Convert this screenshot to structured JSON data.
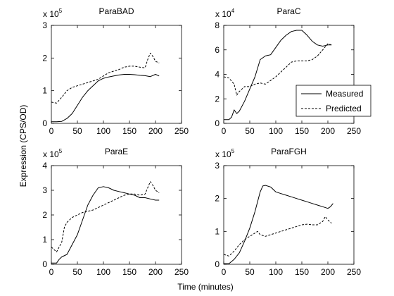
{
  "figure": {
    "ylabel": "Expression (CPS/OD)",
    "xlabel": "Time (minutes)"
  },
  "legend": {
    "placement": "right side of ParaC panel",
    "entries": [
      {
        "label": "Measured",
        "style": "solid"
      },
      {
        "label": "Predicted",
        "style": "dashed"
      }
    ]
  },
  "chart_data": [
    {
      "type": "line",
      "title": "ParaBAD",
      "xlim": [
        0,
        250
      ],
      "ylim": [
        0,
        3
      ],
      "xticks": [
        "0",
        "50",
        "100",
        "150",
        "200",
        "250"
      ],
      "yticks": [
        "0",
        "1",
        "2",
        "3"
      ],
      "multiplier": {
        "base": "x 10",
        "exp": "5"
      },
      "series": [
        {
          "name": "Measured",
          "x": [
            0,
            10,
            20,
            30,
            40,
            50,
            60,
            70,
            80,
            90,
            100,
            110,
            120,
            130,
            140,
            150,
            160,
            170,
            180,
            190,
            200,
            207
          ],
          "y": [
            0.05,
            0.05,
            0.06,
            0.15,
            0.3,
            0.55,
            0.8,
            1.0,
            1.15,
            1.3,
            1.38,
            1.42,
            1.45,
            1.48,
            1.5,
            1.5,
            1.49,
            1.47,
            1.46,
            1.43,
            1.5,
            1.45
          ]
        },
        {
          "name": "Predicted",
          "x": [
            0,
            10,
            20,
            25,
            30,
            40,
            50,
            60,
            70,
            80,
            90,
            100,
            110,
            120,
            130,
            140,
            150,
            160,
            170,
            180,
            185,
            190,
            195,
            200,
            207
          ],
          "y": [
            0.65,
            0.62,
            0.8,
            0.9,
            1.0,
            1.1,
            1.15,
            1.2,
            1.25,
            1.3,
            1.35,
            1.45,
            1.55,
            1.6,
            1.65,
            1.72,
            1.75,
            1.75,
            1.72,
            1.7,
            1.95,
            2.15,
            2.05,
            1.9,
            1.85
          ]
        }
      ]
    },
    {
      "type": "line",
      "title": "ParaC",
      "xlim": [
        0,
        250
      ],
      "ylim": [
        0,
        8
      ],
      "xticks": [
        "0",
        "50",
        "100",
        "150",
        "200",
        "250"
      ],
      "yticks": [
        "0",
        "2",
        "4",
        "6",
        "8"
      ],
      "multiplier": {
        "base": "x 10",
        "exp": "4"
      },
      "series": [
        {
          "name": "Measured",
          "x": [
            0,
            10,
            15,
            20,
            25,
            30,
            40,
            50,
            60,
            70,
            80,
            90,
            100,
            110,
            120,
            130,
            140,
            150,
            160,
            170,
            180,
            190,
            200,
            207
          ],
          "y": [
            0.3,
            0.3,
            0.5,
            1.1,
            0.8,
            1.0,
            1.8,
            2.8,
            3.8,
            5.2,
            5.5,
            5.6,
            6.2,
            6.8,
            7.2,
            7.5,
            7.6,
            7.6,
            7.2,
            6.7,
            6.4,
            6.3,
            6.4,
            6.4
          ]
        },
        {
          "name": "Predicted",
          "x": [
            0,
            10,
            20,
            25,
            30,
            40,
            50,
            60,
            70,
            80,
            90,
            100,
            110,
            120,
            130,
            140,
            150,
            160,
            170,
            180,
            190,
            200,
            207
          ],
          "y": [
            3.8,
            3.7,
            3.2,
            2.3,
            2.6,
            3.0,
            3.0,
            3.2,
            3.3,
            3.2,
            3.5,
            3.8,
            4.2,
            4.6,
            5.0,
            5.1,
            5.1,
            5.1,
            5.2,
            5.5,
            6.0,
            6.5,
            6.4
          ]
        }
      ]
    },
    {
      "type": "line",
      "title": "ParaE",
      "xlim": [
        0,
        250
      ],
      "ylim": [
        0,
        4
      ],
      "xticks": [
        "0",
        "50",
        "100",
        "150",
        "200",
        "250"
      ],
      "yticks": [
        "0",
        "1",
        "2",
        "3",
        "4"
      ],
      "multiplier": {
        "base": "x 10",
        "exp": "5"
      },
      "series": [
        {
          "name": "Measured",
          "x": [
            0,
            10,
            15,
            20,
            30,
            40,
            50,
            60,
            70,
            80,
            90,
            100,
            110,
            120,
            130,
            140,
            150,
            160,
            170,
            180,
            190,
            200,
            207
          ],
          "y": [
            0.05,
            0.05,
            0.2,
            0.3,
            0.4,
            0.8,
            1.2,
            1.8,
            2.4,
            2.8,
            3.1,
            3.15,
            3.1,
            3.0,
            2.95,
            2.9,
            2.85,
            2.8,
            2.7,
            2.7,
            2.65,
            2.6,
            2.6
          ]
        },
        {
          "name": "Predicted",
          "x": [
            0,
            10,
            20,
            25,
            30,
            40,
            50,
            60,
            70,
            80,
            90,
            100,
            110,
            120,
            130,
            140,
            150,
            160,
            170,
            180,
            185,
            190,
            195,
            200,
            207
          ],
          "y": [
            0.7,
            0.5,
            0.9,
            1.5,
            1.7,
            1.9,
            2.0,
            2.1,
            2.15,
            2.2,
            2.3,
            2.4,
            2.5,
            2.6,
            2.7,
            2.8,
            2.85,
            2.85,
            2.8,
            2.85,
            3.1,
            3.35,
            3.2,
            3.0,
            2.9
          ]
        }
      ]
    },
    {
      "type": "line",
      "title": "ParaFGH",
      "xlim": [
        0,
        250
      ],
      "ylim": [
        0,
        3
      ],
      "xticks": [
        "0",
        "50",
        "100",
        "150",
        "200",
        "250"
      ],
      "yticks": [
        "0",
        "1",
        "2",
        "3"
      ],
      "multiplier": {
        "base": "x 10",
        "exp": "5"
      },
      "series": [
        {
          "name": "Measured",
          "x": [
            0,
            10,
            20,
            30,
            40,
            50,
            60,
            70,
            75,
            80,
            90,
            100,
            110,
            120,
            130,
            140,
            150,
            160,
            170,
            180,
            190,
            200,
            205,
            210
          ],
          "y": [
            0.02,
            0.02,
            0.15,
            0.35,
            0.7,
            1.1,
            1.6,
            2.2,
            2.38,
            2.4,
            2.35,
            2.2,
            2.15,
            2.1,
            2.05,
            2.0,
            1.95,
            1.9,
            1.85,
            1.8,
            1.75,
            1.7,
            1.75,
            1.85
          ]
        },
        {
          "name": "Predicted",
          "x": [
            0,
            10,
            20,
            30,
            40,
            50,
            60,
            65,
            70,
            80,
            90,
            100,
            110,
            120,
            130,
            140,
            150,
            160,
            170,
            180,
            190,
            195,
            200,
            207
          ],
          "y": [
            0.3,
            0.25,
            0.4,
            0.6,
            0.75,
            0.85,
            0.95,
            1.0,
            0.9,
            0.85,
            0.9,
            0.95,
            1.0,
            1.05,
            1.1,
            1.15,
            1.2,
            1.22,
            1.2,
            1.2,
            1.3,
            1.45,
            1.35,
            1.25
          ]
        }
      ]
    }
  ]
}
